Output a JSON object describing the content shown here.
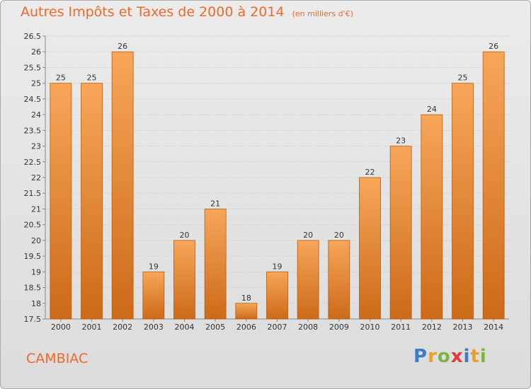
{
  "header": {
    "title": "Autres Impôts et Taxes de 2000 à 2014",
    "subtitle": "(en milliers d'€)"
  },
  "footer": {
    "place": "CAMBIAC",
    "logo_letters": [
      {
        "char": "P",
        "color": "#3d7cc9"
      },
      {
        "char": "r",
        "color": "#e8a02a"
      },
      {
        "char": "o",
        "color": "#7cb342"
      },
      {
        "char": "x",
        "color": "#e53935"
      },
      {
        "char": "i",
        "color": "#3d7cc9"
      },
      {
        "char": "t",
        "color": "#e8a02a"
      },
      {
        "char": "i",
        "color": "#7cb342"
      }
    ]
  },
  "chart_data": {
    "type": "bar",
    "title": "Autres Impôts et Taxes de 2000 à 2014",
    "subtitle": "(en milliers d'€)",
    "categories": [
      "2000",
      "2001",
      "2002",
      "2003",
      "2004",
      "2005",
      "2006",
      "2007",
      "2008",
      "2009",
      "2010",
      "2011",
      "2012",
      "2013",
      "2014"
    ],
    "values": [
      25,
      25,
      26,
      19,
      20,
      21,
      18,
      19,
      20,
      20,
      22,
      23,
      24,
      25,
      26
    ],
    "value_labels": [
      "25",
      "25",
      "26",
      "19",
      "20",
      "21",
      "18",
      "19",
      "20",
      "20",
      "22",
      "23",
      "24",
      "25",
      "26"
    ],
    "ylim": [
      17.5,
      26.5
    ],
    "yticks": [
      "17.5",
      "18",
      "18.5",
      "19",
      "19.5",
      "20",
      "20.5",
      "21",
      "21.5",
      "22",
      "22.5",
      "23",
      "23.5",
      "24",
      "24.5",
      "25",
      "25.5",
      "26",
      "26.5"
    ],
    "grid": true,
    "legend": "none",
    "bar_color_top": "#f7a65a",
    "bar_color_bottom": "#cc6a18",
    "bar_edge_color": "#b95d10"
  }
}
